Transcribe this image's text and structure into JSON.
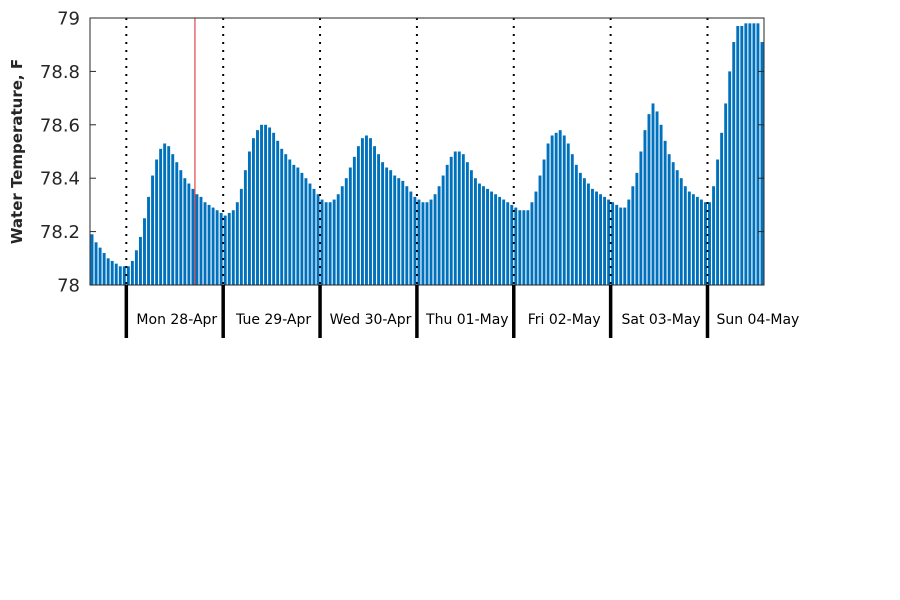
{
  "chart_data": {
    "type": "bar",
    "title": "",
    "xlabel": "",
    "ylabel": "Water Temperature, F",
    "ylim": [
      78,
      79
    ],
    "yticks": [
      "78",
      "78.2",
      "78.4",
      "78.6",
      "78.8",
      "79"
    ],
    "grid": false,
    "colors": {
      "bar": "#0072BD",
      "current_marker": "#E0474C",
      "day_divider": "#000000",
      "axis": "#262626"
    },
    "bars_per_day": 24,
    "first_bar_hour_offset": -9,
    "current_marker_bar_index": 26,
    "day_labels": [
      "Mon 28-Apr",
      "Tue 29-Apr",
      "Wed 30-Apr",
      "Thu 01-May",
      "Fri 02-May",
      "Sat 03-May",
      "Sun 04-May"
    ],
    "values": [
      78.19,
      78.16,
      78.14,
      78.12,
      78.1,
      78.09,
      78.08,
      78.07,
      78.07,
      78.07,
      78.09,
      78.13,
      78.18,
      78.25,
      78.33,
      78.41,
      78.47,
      78.51,
      78.53,
      78.52,
      78.49,
      78.46,
      78.43,
      78.4,
      78.38,
      78.36,
      78.34,
      78.33,
      78.31,
      78.3,
      78.29,
      78.28,
      78.27,
      78.26,
      78.27,
      78.28,
      78.31,
      78.36,
      78.43,
      78.5,
      78.55,
      78.58,
      78.6,
      78.6,
      78.59,
      78.57,
      78.54,
      78.51,
      78.49,
      78.47,
      78.45,
      78.44,
      78.42,
      78.4,
      78.38,
      78.36,
      78.34,
      78.32,
      78.31,
      78.31,
      78.32,
      78.34,
      78.37,
      78.4,
      78.44,
      78.48,
      78.52,
      78.55,
      78.56,
      78.55,
      78.52,
      78.49,
      78.46,
      78.44,
      78.43,
      78.41,
      78.4,
      78.39,
      78.37,
      78.35,
      78.33,
      78.32,
      78.31,
      78.31,
      78.32,
      78.34,
      78.37,
      78.41,
      78.45,
      78.48,
      78.5,
      78.5,
      78.49,
      78.46,
      78.43,
      78.4,
      78.38,
      78.37,
      78.36,
      78.35,
      78.34,
      78.33,
      78.32,
      78.31,
      78.3,
      78.29,
      78.28,
      78.28,
      78.28,
      78.31,
      78.35,
      78.41,
      78.47,
      78.53,
      78.56,
      78.57,
      78.58,
      78.56,
      78.53,
      78.49,
      78.45,
      78.42,
      78.4,
      78.38,
      78.36,
      78.35,
      78.34,
      78.33,
      78.32,
      78.31,
      78.3,
      78.29,
      78.29,
      78.32,
      78.37,
      78.42,
      78.5,
      78.58,
      78.64,
      78.68,
      78.65,
      78.6,
      78.54,
      78.49,
      78.46,
      78.43,
      78.4,
      78.37,
      78.35,
      78.34,
      78.33,
      78.32,
      78.31,
      78.31,
      78.37,
      78.47,
      78.57,
      78.68,
      78.8,
      78.91,
      78.97,
      78.97,
      78.98,
      78.98,
      78.98,
      78.98,
      78.91
    ]
  }
}
